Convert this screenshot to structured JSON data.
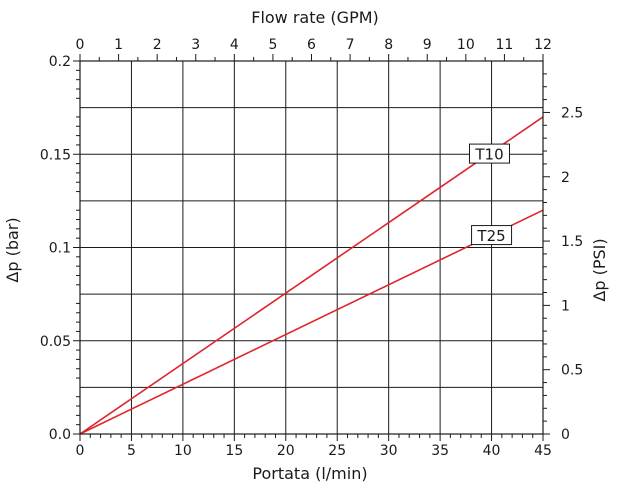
{
  "chart_data": {
    "type": "line",
    "title": "",
    "xlabel": "Portata (l/min)",
    "ylabel": "Δp (bar)",
    "x2label": "Flow rate (GPM)",
    "y2label": "Δp (PSI)",
    "xlim": [
      0,
      45
    ],
    "ylim": [
      0,
      0.2
    ],
    "x2lim": [
      0,
      12
    ],
    "y2lim": [
      0,
      2.9
    ],
    "x_ticks": [
      "0",
      "5",
      "10",
      "15",
      "20",
      "25",
      "30",
      "35",
      "40",
      "45"
    ],
    "y_ticks": [
      "0.0",
      "0.05",
      "0.1",
      "0.15",
      "0.2"
    ],
    "x2_ticks": [
      "0",
      "1",
      "2",
      "3",
      "4",
      "5",
      "6",
      "7",
      "8",
      "9",
      "10",
      "11",
      "12"
    ],
    "y2_ticks": [
      "0",
      "0.5",
      "1",
      "1.5",
      "2",
      "2.5"
    ],
    "grid": true,
    "line_color": "#e0242b",
    "series": [
      {
        "name": "T10",
        "x": [
          0,
          45
        ],
        "y": [
          0,
          0.17
        ]
      },
      {
        "name": "T25",
        "x": [
          0,
          45
        ],
        "y": [
          0,
          0.12
        ]
      }
    ]
  }
}
